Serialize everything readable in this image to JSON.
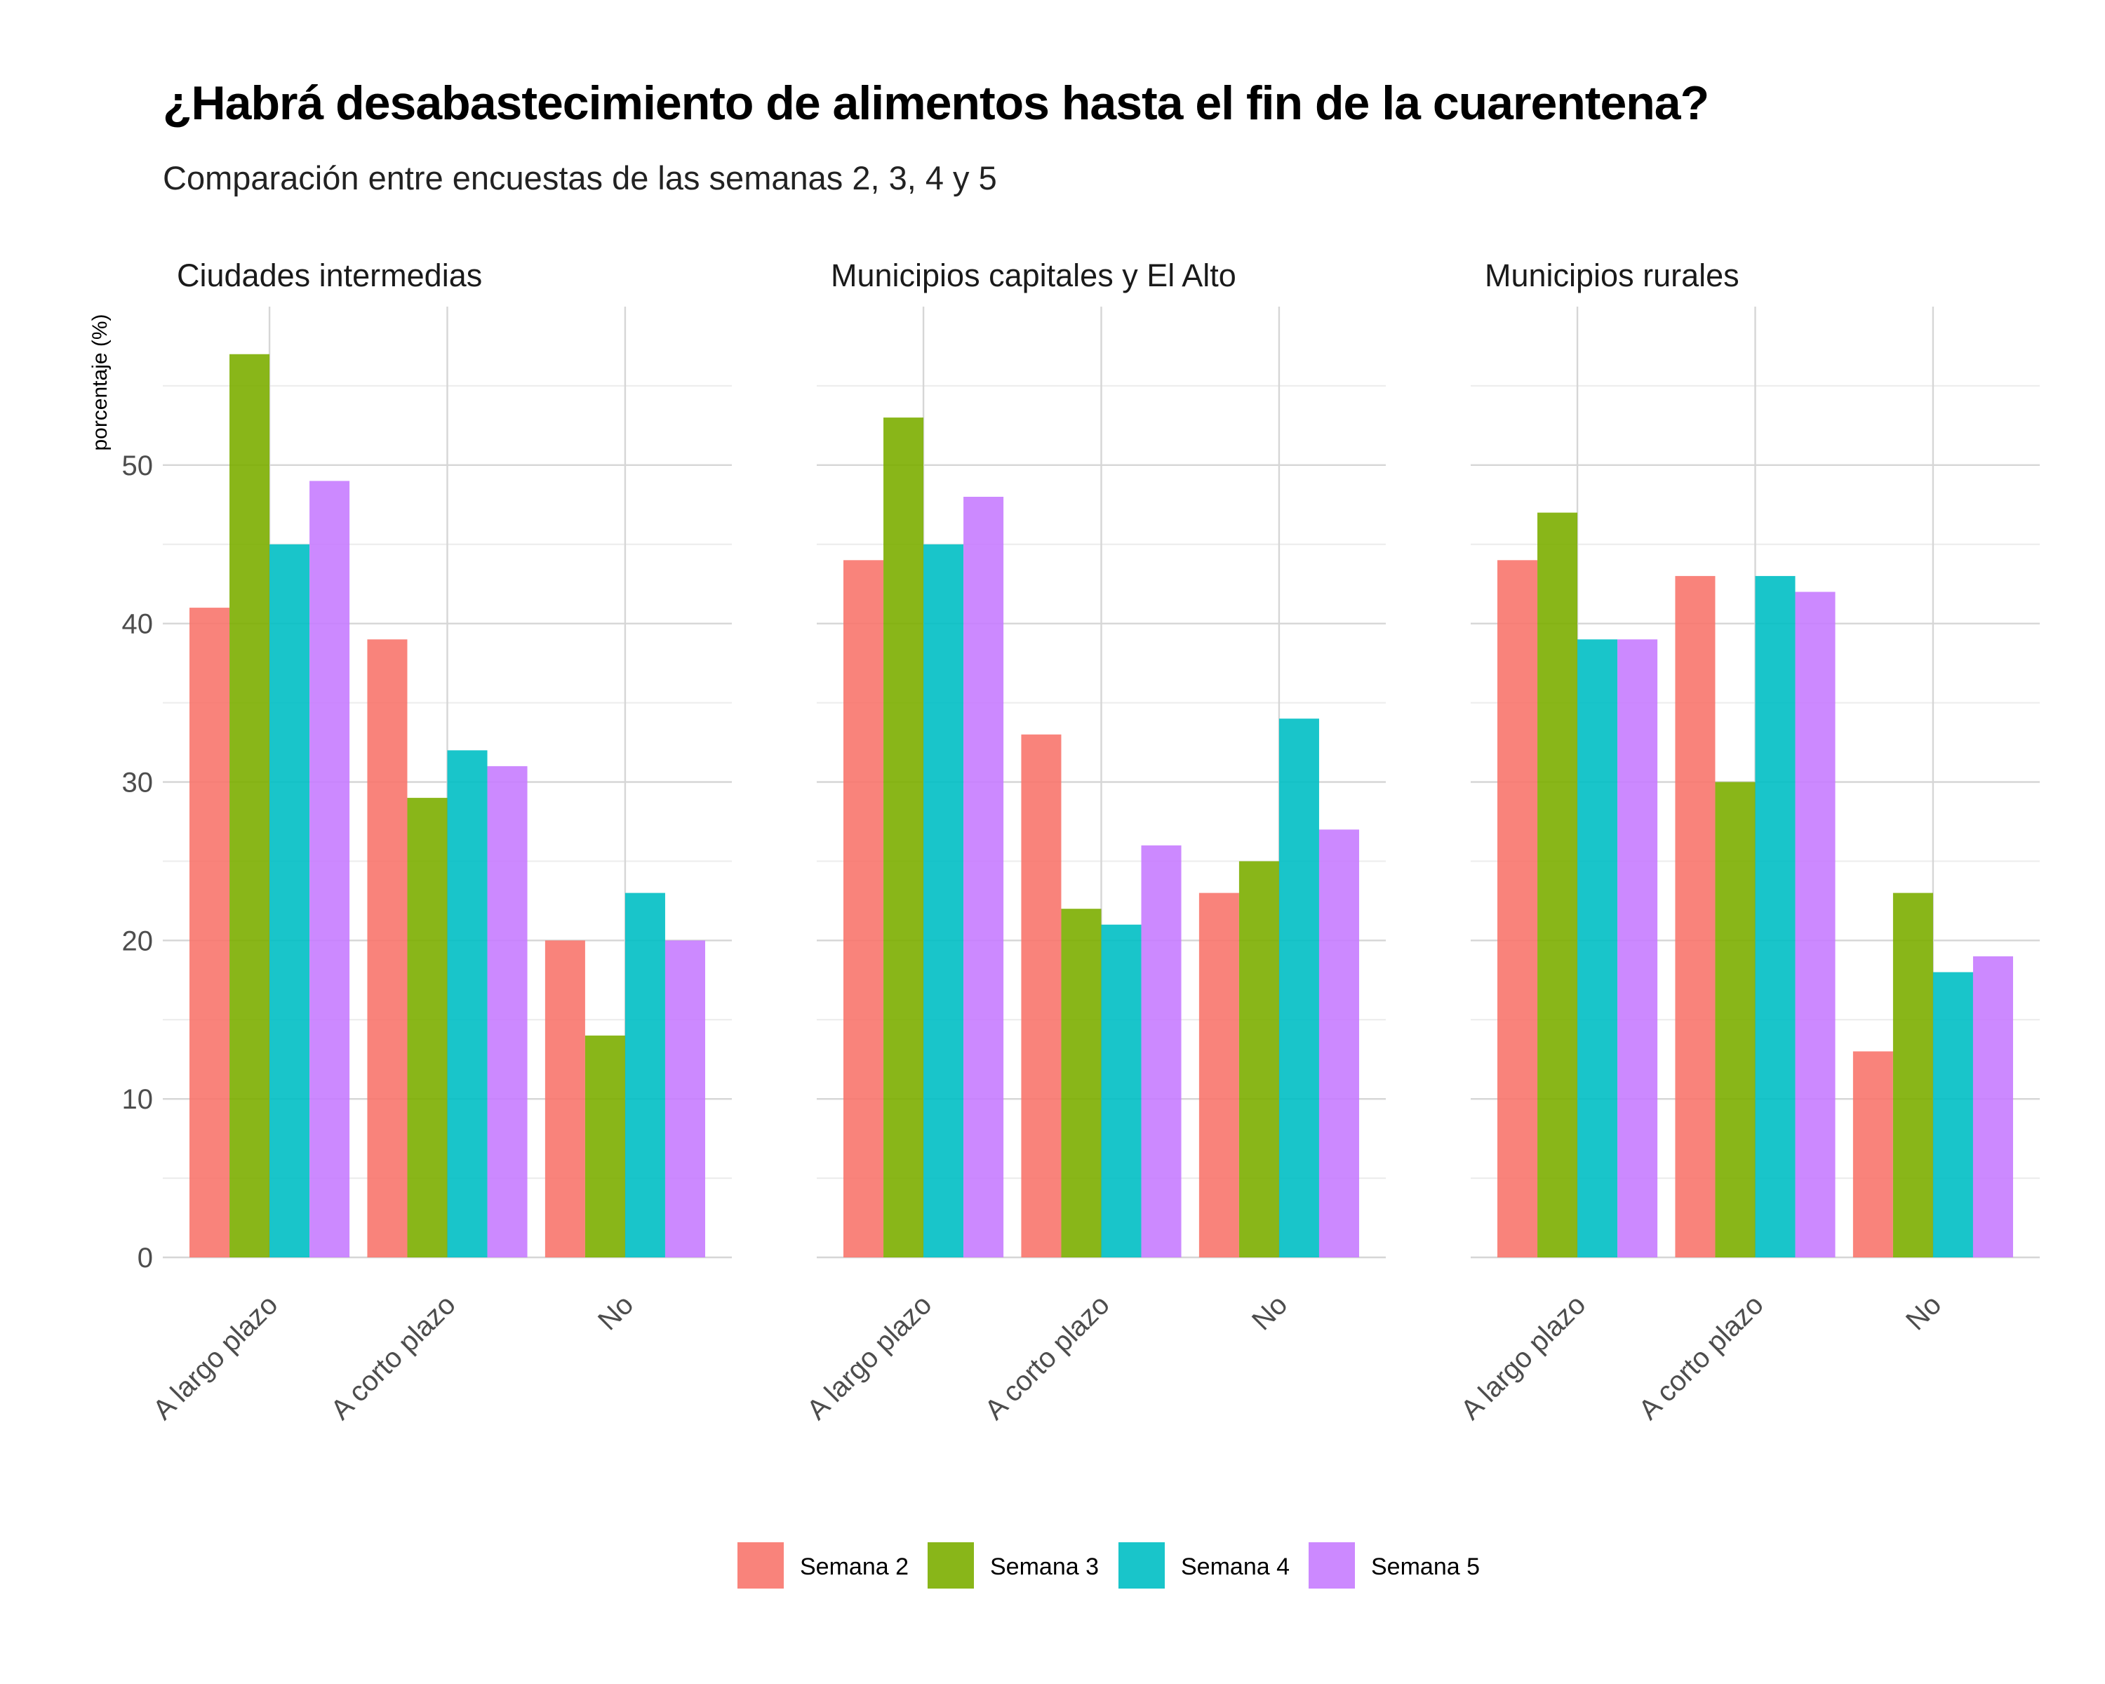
{
  "chart_data": {
    "type": "bar",
    "title": "¿Habrá desabastecimiento de alimentos hasta el fin de la cuarentena?",
    "subtitle": "Comparación entre encuestas de las semanas 2, 3, 4 y 5",
    "ylabel": "porcentaje (%)",
    "xlabel": "",
    "ylim": [
      0,
      60
    ],
    "yticks": [
      0,
      10,
      20,
      30,
      40,
      50
    ],
    "grid": true,
    "legend_position": "bottom",
    "categories": [
      "A largo plazo",
      "A corto plazo",
      "No"
    ],
    "series_colors": [
      "#F8766D",
      "#7CAE00",
      "#00BFC4",
      "#C77CFF"
    ],
    "bar_opacity": 0.9,
    "facets": [
      {
        "name": "Ciudades intermedias",
        "series": [
          {
            "name": "Semana 2",
            "values": [
              41,
              39,
              20
            ]
          },
          {
            "name": "Semana 3",
            "values": [
              57,
              29,
              14
            ]
          },
          {
            "name": "Semana 4",
            "values": [
              45,
              32,
              23
            ]
          },
          {
            "name": "Semana 5",
            "values": [
              49,
              31,
              20
            ]
          }
        ]
      },
      {
        "name": "Municipios capitales y El Alto",
        "series": [
          {
            "name": "Semana 2",
            "values": [
              44,
              33,
              23
            ]
          },
          {
            "name": "Semana 3",
            "values": [
              53,
              22,
              25
            ]
          },
          {
            "name": "Semana 4",
            "values": [
              45,
              21,
              34
            ]
          },
          {
            "name": "Semana 5",
            "values": [
              48,
              26,
              27
            ]
          }
        ]
      },
      {
        "name": "Municipios rurales",
        "series": [
          {
            "name": "Semana 2",
            "values": [
              44,
              43,
              13
            ]
          },
          {
            "name": "Semana 3",
            "values": [
              47,
              30,
              23
            ]
          },
          {
            "name": "Semana 4",
            "values": [
              39,
              43,
              18
            ]
          },
          {
            "name": "Semana 5",
            "values": [
              39,
              42,
              19
            ]
          }
        ]
      }
    ]
  }
}
